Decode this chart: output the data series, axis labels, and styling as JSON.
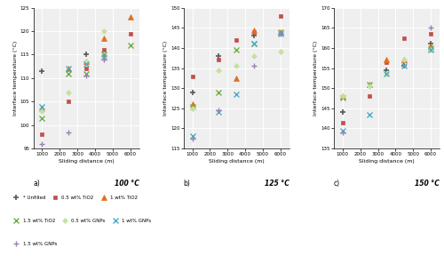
{
  "subplots": [
    {
      "label": "a)",
      "temp_label": "100 °C",
      "ylim": [
        95,
        125
      ],
      "yticks": [
        95,
        100,
        105,
        110,
        115,
        120,
        125
      ],
      "series": {
        "Unfilled": {
          "x": [
            1000,
            3500
          ],
          "y": [
            111.5,
            115.0
          ],
          "color": "#5a5a5a",
          "marker": "+",
          "ms": 5,
          "mew": 1.2
        },
        "0.5wt% TiO2": {
          "x": [
            1000,
            2500,
            3500,
            4500,
            6000
          ],
          "y": [
            98.0,
            105.0,
            112.0,
            116.0,
            119.5
          ],
          "color": "#c0504d",
          "marker": "s",
          "ms": 3.5,
          "mew": 0.5
        },
        "1wt% TiO2": {
          "x": [
            1000,
            2500,
            3500,
            4500,
            6000
          ],
          "y": [
            103.5,
            112.0,
            113.5,
            118.5,
            123.0
          ],
          "color": "#e07020",
          "marker": "^",
          "ms": 4,
          "mew": 0.5
        },
        "1.5wt% TiO2": {
          "x": [
            1000,
            2500,
            3500,
            4500,
            6000
          ],
          "y": [
            101.5,
            111.0,
            111.0,
            115.0,
            117.0
          ],
          "color": "#70ad47",
          "marker": "x",
          "ms": 4,
          "mew": 1.0
        },
        "0.5wt% GNPs": {
          "x": [
            1000,
            2500,
            3500,
            4500
          ],
          "y": [
            103.0,
            107.0,
            113.5,
            120.0
          ],
          "color": "#c5e0a0",
          "marker": "D",
          "ms": 3,
          "mew": 0.5
        },
        "1wt% GNPs": {
          "x": [
            1000,
            2500,
            3500,
            4500
          ],
          "y": [
            104.0,
            112.0,
            113.0,
            114.5
          ],
          "color": "#4bacc6",
          "marker": "x",
          "ms": 4,
          "mew": 1.0
        },
        "1.5wt% GNPs": {
          "x": [
            1000,
            2500,
            3500,
            4500
          ],
          "y": [
            96.0,
            98.5,
            110.5,
            114.0
          ],
          "color": "#9b7fba",
          "marker": "+",
          "ms": 4,
          "mew": 1.0
        }
      }
    },
    {
      "label": "b)",
      "temp_label": "125 °C",
      "ylim": [
        115,
        150
      ],
      "yticks": [
        115,
        120,
        125,
        130,
        135,
        140,
        145,
        150
      ],
      "series": {
        "Unfilled": {
          "x": [
            1000,
            2500,
            4500
          ],
          "y": [
            129.0,
            138.0,
            143.0
          ],
          "color": "#5a5a5a",
          "marker": "+",
          "ms": 5,
          "mew": 1.2
        },
        "0.5wt% TiO2": {
          "x": [
            1000,
            2500,
            3500,
            4500,
            6000
          ],
          "y": [
            133.0,
            137.0,
            142.0,
            144.0,
            148.0
          ],
          "color": "#c0504d",
          "marker": "s",
          "ms": 3.5,
          "mew": 0.5
        },
        "1wt% TiO2": {
          "x": [
            1000,
            3500,
            4500,
            6000
          ],
          "y": [
            126.0,
            132.5,
            144.5,
            144.0
          ],
          "color": "#e07020",
          "marker": "^",
          "ms": 4,
          "mew": 0.5
        },
        "1.5wt% TiO2": {
          "x": [
            1000,
            2500,
            3500,
            4500,
            6000
          ],
          "y": [
            125.5,
            129.0,
            139.5,
            141.0,
            144.0
          ],
          "color": "#70ad47",
          "marker": "x",
          "ms": 4,
          "mew": 1.0
        },
        "0.5wt% GNPs": {
          "x": [
            1000,
            2500,
            3500,
            4500,
            6000
          ],
          "y": [
            125.0,
            134.5,
            135.5,
            138.0,
            139.0
          ],
          "color": "#c5e0a0",
          "marker": "D",
          "ms": 3,
          "mew": 0.5
        },
        "1wt% GNPs": {
          "x": [
            1000,
            2500,
            3500,
            4500,
            6000
          ],
          "y": [
            118.0,
            124.0,
            128.5,
            141.0,
            143.5
          ],
          "color": "#4bacc6",
          "marker": "x",
          "ms": 4,
          "mew": 1.0
        },
        "1.5wt% GNPs": {
          "x": [
            1000,
            2500,
            4500,
            6000
          ],
          "y": [
            117.5,
            124.5,
            135.5,
            143.5
          ],
          "color": "#9b7fba",
          "marker": "+",
          "ms": 4,
          "mew": 1.0
        }
      }
    },
    {
      "label": "c)",
      "temp_label": "150 °C",
      "ylim": [
        135,
        170
      ],
      "yticks": [
        135,
        140,
        145,
        150,
        155,
        160,
        165,
        170
      ],
      "series": {
        "Unfilled": {
          "x": [
            1000,
            3500,
            4500,
            6000
          ],
          "y": [
            144.0,
            154.5,
            155.5,
            161.0
          ],
          "color": "#5a5a5a",
          "marker": "+",
          "ms": 5,
          "mew": 1.2
        },
        "0.5wt% TiO2": {
          "x": [
            1000,
            2500,
            3500,
            4500,
            6000
          ],
          "y": [
            141.5,
            148.0,
            156.5,
            162.5,
            163.5
          ],
          "color": "#c0504d",
          "marker": "s",
          "ms": 3.5,
          "mew": 0.5
        },
        "1wt% TiO2": {
          "x": [
            1000,
            2500,
            3500,
            4500,
            6000
          ],
          "y": [
            148.0,
            151.0,
            157.0,
            157.0,
            160.5
          ],
          "color": "#e07020",
          "marker": "^",
          "ms": 4,
          "mew": 0.5
        },
        "1.5wt% TiO2": {
          "x": [
            1000,
            2500,
            6000
          ],
          "y": [
            147.5,
            151.0,
            160.0
          ],
          "color": "#70ad47",
          "marker": "x",
          "ms": 4,
          "mew": 1.0
        },
        "0.5wt% GNPs": {
          "x": [
            1000,
            2500,
            3500,
            4500,
            6000
          ],
          "y": [
            148.0,
            150.5,
            153.5,
            157.0,
            159.5
          ],
          "color": "#c5e0a0",
          "marker": "D",
          "ms": 3,
          "mew": 0.5
        },
        "1wt% GNPs": {
          "x": [
            1000,
            2500,
            3500,
            4500,
            6000
          ],
          "y": [
            139.5,
            143.5,
            153.5,
            155.5,
            159.5
          ],
          "color": "#4bacc6",
          "marker": "x",
          "ms": 4,
          "mew": 1.0
        },
        "1.5wt% GNPs": {
          "x": [
            1000,
            6000
          ],
          "y": [
            139.0,
            165.0
          ],
          "color": "#9b7fba",
          "marker": "+",
          "ms": 4,
          "mew": 1.0
        }
      }
    }
  ],
  "legend_rows": [
    [
      {
        "label": "* Unfilled",
        "color": "#5a5a5a",
        "marker": "+",
        "ms": 4,
        "mew": 1.2
      },
      {
        "label": "0.5 wt% TiO2",
        "color": "#c0504d",
        "marker": "s",
        "ms": 3.5,
        "mew": 0.5
      },
      {
        "label": "△ 1 wt% TiO2",
        "color": "#e07020",
        "marker": "^",
        "ms": 4,
        "mew": 0.5
      }
    ],
    [
      {
        "label": "× 1.5 wt% TiO2",
        "color": "#70ad47",
        "marker": "x",
        "ms": 4,
        "mew": 1.0
      },
      {
        "label": "◇ 0.5 wt% GNPs",
        "color": "#c5e0a0",
        "marker": "D",
        "ms": 3,
        "mew": 0.5
      },
      {
        "label": "* 1 wt% GNPs",
        "color": "#4bacc6",
        "marker": "x",
        "ms": 4,
        "mew": 1.0
      }
    ],
    [
      {
        "label": "+ 1.5 wt% GNPs",
        "color": "#9b7fba",
        "marker": "+",
        "ms": 4,
        "mew": 1.0
      }
    ]
  ],
  "xlabel": "Sliding distance (m)",
  "ylabel": "Interface temperature (°C)",
  "xticks": [
    1000,
    2000,
    3000,
    4000,
    5000,
    6000
  ],
  "bg_color": "#efefef"
}
